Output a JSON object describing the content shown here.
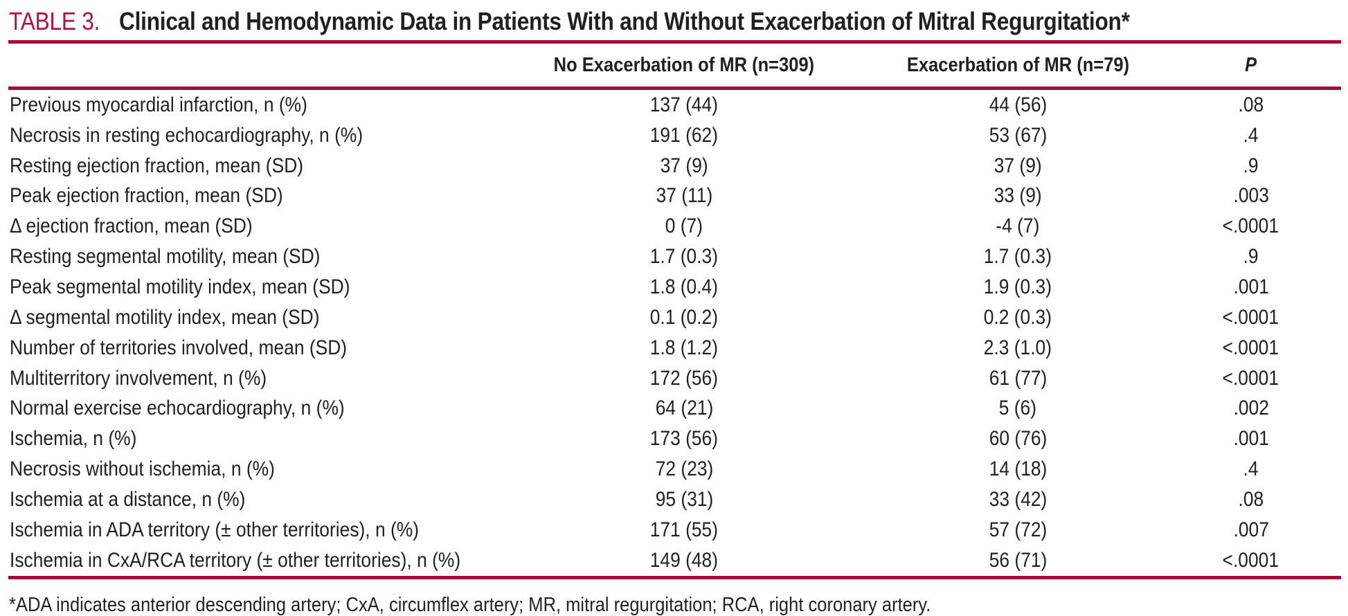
{
  "colors": {
    "accent_red": "#b30f42",
    "rule_red": "#a50d38",
    "text": "#231f20",
    "background": "#ffffff"
  },
  "caption": {
    "table_number": "TABLE 3.",
    "title": "Clinical and Hemodynamic Data in Patients With and Without Exacerbation of Mitral Regurgitation*"
  },
  "table": {
    "columns": {
      "label": "",
      "no_exacerbation": "No Exacerbation of MR (n=309)",
      "exacerbation": "Exacerbation of MR (n=79)",
      "p": "P"
    },
    "rows": [
      {
        "label": "Previous myocardial infarction, n (%)",
        "no_exacerbation": "137 (44)",
        "exacerbation": "44 (56)",
        "p": ".08"
      },
      {
        "label": "Necrosis in resting echocardiography, n (%)",
        "no_exacerbation": "191 (62)",
        "exacerbation": "53 (67)",
        "p": ".4"
      },
      {
        "label": "Resting ejection fraction, mean (SD)",
        "no_exacerbation": "37 (9)",
        "exacerbation": "37 (9)",
        "p": ".9"
      },
      {
        "label": "Peak ejection fraction, mean (SD)",
        "no_exacerbation": "37 (11)",
        "exacerbation": "33 (9)",
        "p": ".003"
      },
      {
        "label": "Δ ejection fraction, mean (SD)",
        "no_exacerbation": "0 (7)",
        "exacerbation": "-4 (7)",
        "p": "<.0001"
      },
      {
        "label": "Resting segmental motility, mean (SD)",
        "no_exacerbation": "1.7 (0.3)",
        "exacerbation": "1.7 (0.3)",
        "p": ".9"
      },
      {
        "label": "Peak segmental motility index, mean (SD)",
        "no_exacerbation": "1.8 (0.4)",
        "exacerbation": "1.9 (0.3)",
        "p": ".001"
      },
      {
        "label": "Δ segmental motility index, mean (SD)",
        "no_exacerbation": "0.1 (0.2)",
        "exacerbation": "0.2 (0.3)",
        "p": "<.0001"
      },
      {
        "label": "Number of territories involved, mean (SD)",
        "no_exacerbation": "1.8 (1.2)",
        "exacerbation": "2.3 (1.0)",
        "p": "<.0001"
      },
      {
        "label": "Multiterritory involvement, n (%)",
        "no_exacerbation": "172 (56)",
        "exacerbation": "61 (77)",
        "p": "<.0001"
      },
      {
        "label": "Normal exercise echocardiography, n (%)",
        "no_exacerbation": "64 (21)",
        "exacerbation": "5 (6)",
        "p": ".002"
      },
      {
        "label": "Ischemia, n (%)",
        "no_exacerbation": "173 (56)",
        "exacerbation": "60 (76)",
        "p": ".001"
      },
      {
        "label": "Necrosis without ischemia, n (%)",
        "no_exacerbation": "72 (23)",
        "exacerbation": "14 (18)",
        "p": ".4"
      },
      {
        "label": "Ischemia at a distance, n (%)",
        "no_exacerbation": "95 (31)",
        "exacerbation": "33 (42)",
        "p": ".08"
      },
      {
        "label": "Ischemia in ADA territory (± other territories), n (%)",
        "no_exacerbation": "171 (55)",
        "exacerbation": "57 (72)",
        "p": ".007"
      },
      {
        "label": "Ischemia in CxA/RCA territory (± other territories), n (%)",
        "no_exacerbation": "149 (48)",
        "exacerbation": "56 (71)",
        "p": "<.0001"
      }
    ]
  },
  "footnote": "*ADA indicates anterior descending artery; CxA, circumflex artery; MR, mitral regurgitation; RCA, right coronary artery."
}
